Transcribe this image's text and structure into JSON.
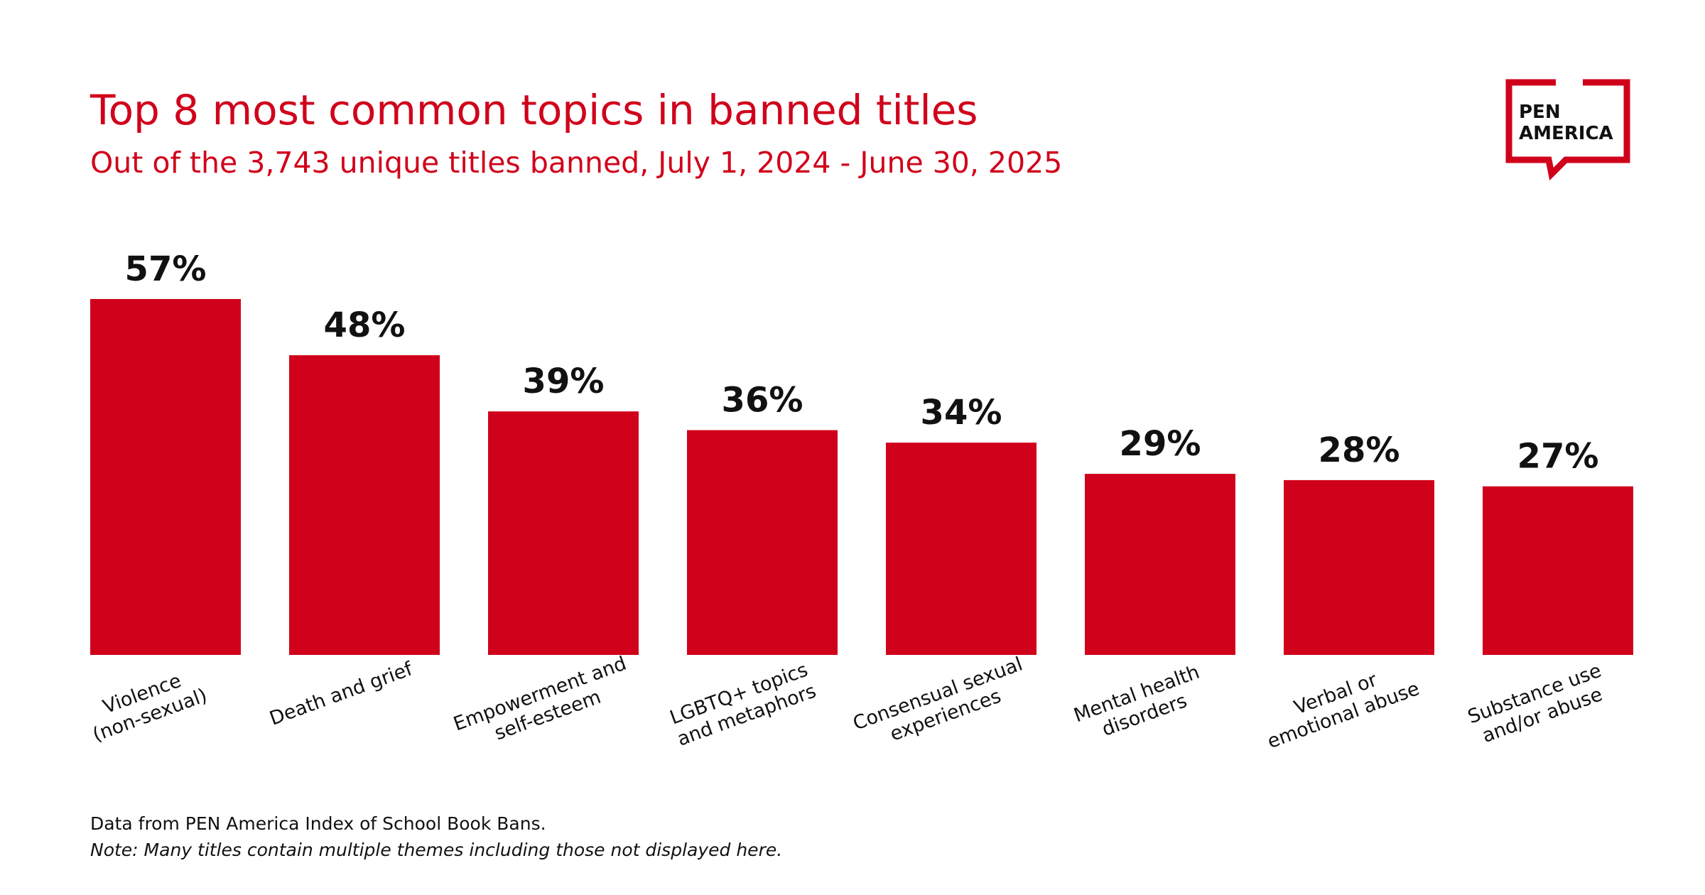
{
  "chart_data": {
    "type": "bar",
    "title": "Top 8 most common topics in banned titles",
    "subtitle": "Out of the 3,743 unique titles banned, July 1, 2024 - June 30, 2025",
    "categories": [
      [
        "Violence",
        "(non-sexual)"
      ],
      [
        "Death and grief"
      ],
      [
        "Empowerment and",
        "self-esteem"
      ],
      [
        "LGBTQ+ topics",
        "and metaphors"
      ],
      [
        "Consensual sexual",
        "experiences"
      ],
      [
        "Mental health",
        "disorders"
      ],
      [
        "Verbal or",
        "emotional abuse"
      ],
      [
        "Substance use",
        "and/or abuse"
      ]
    ],
    "values": [
      57,
      48,
      39,
      36,
      34,
      29,
      28,
      27
    ],
    "value_labels": [
      "57%",
      "48%",
      "39%",
      "36%",
      "34%",
      "29%",
      "28%",
      "27%"
    ],
    "color": "#d0021b",
    "notes": [
      "Data from PEN America Index of School Book Bans.",
      "Note: Many titles contain multiple themes including those not displayed here."
    ]
  },
  "logo": {
    "lines": [
      "PEN",
      "AMERICA"
    ]
  }
}
